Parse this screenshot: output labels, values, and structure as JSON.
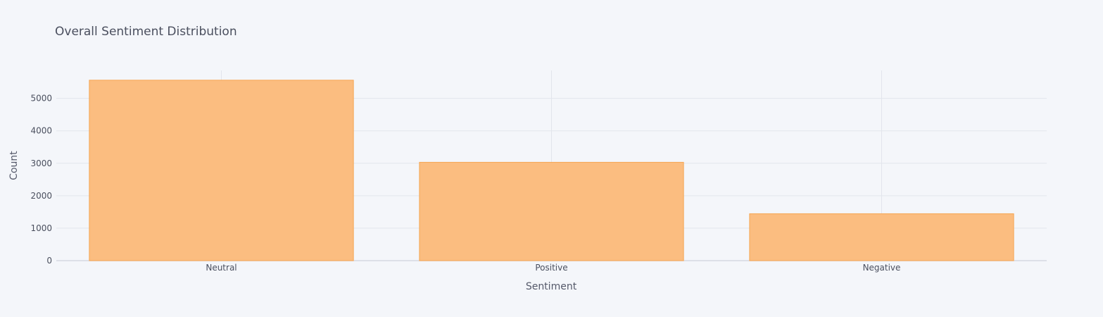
{
  "chart_data": {
    "type": "bar",
    "title": "Overall Sentiment Distribution",
    "xlabel": "Sentiment",
    "ylabel": "Count",
    "categories": [
      "Neutral",
      "Positive",
      "Negative"
    ],
    "values": [
      5560,
      3030,
      1445
    ],
    "ylim": [
      0,
      5860
    ],
    "yticks": [
      0,
      1000,
      2000,
      3000,
      4000,
      5000
    ],
    "grid": true,
    "colors": {
      "bar_fill": "#fbbd80",
      "bar_stroke": "#f6a552",
      "background": "#f4f6fa"
    }
  }
}
